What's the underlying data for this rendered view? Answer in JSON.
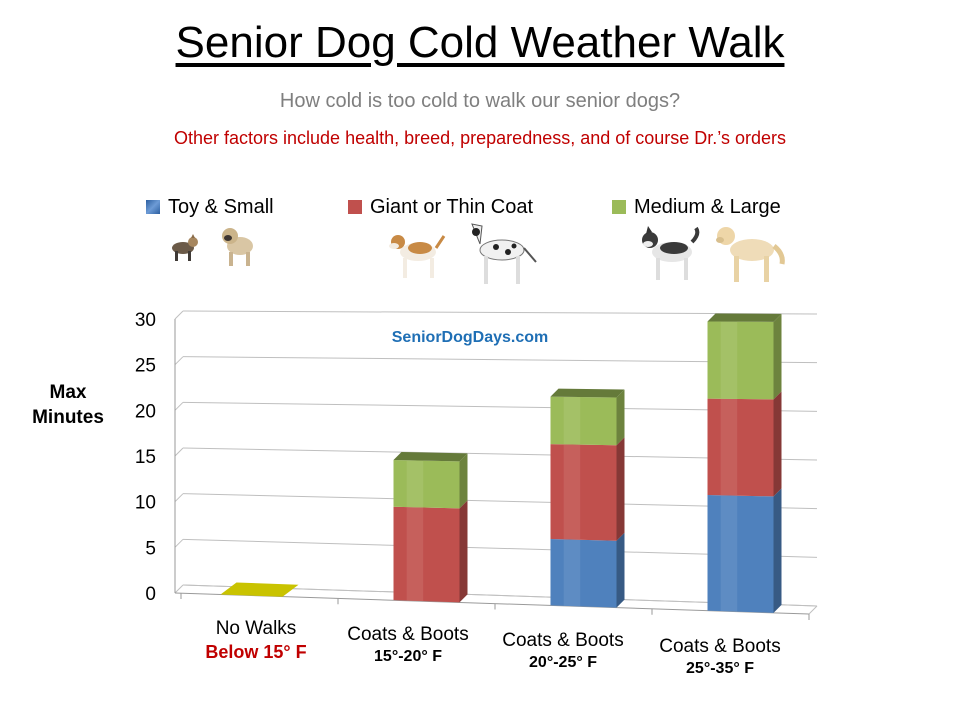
{
  "title": "Senior Dog Cold Weather Walk",
  "subtitle": "How cold is too cold to walk our senior dogs?",
  "note": "Other factors include health, breed, preparedness, and of course Dr.’s orders",
  "watermark": "SeniorDogDays.com",
  "legend": [
    {
      "label": "Toy & Small",
      "color": "#4f81bd"
    },
    {
      "label": "Giant or Thin Coat",
      "color": "#c0504d"
    },
    {
      "label": "Medium & Large",
      "color": "#9bbb59"
    }
  ],
  "dog_icons": [
    "yorkie-icon",
    "pug-icon",
    "beagle-icon",
    "great-dane-icon",
    "husky-icon",
    "golden-retriever-icon"
  ],
  "categories": [
    {
      "line1": "No Walks",
      "line2": "Below 15° F"
    },
    {
      "line1": "Coats & Boots",
      "line2": "15°-20° F"
    },
    {
      "line1": "Coats & Boots",
      "line2": "20°-25° F"
    },
    {
      "line1": "Coats & Boots",
      "line2": "25°-35° F"
    }
  ],
  "chart_data": {
    "type": "bar",
    "stacked": true,
    "three_d": true,
    "title": "Senior Dog Cold Weather Walk",
    "ylabel": "Max Minutes",
    "xlabel": "",
    "ylim": [
      0,
      30
    ],
    "yticks": [
      0,
      5,
      10,
      15,
      20,
      25,
      30
    ],
    "grid": true,
    "legend_position": "top",
    "categories": [
      "No Walks Below 15° F",
      "Coats & Boots 15°-20° F",
      "Coats & Boots 20°-25° F",
      "Coats & Boots 25°-35° F"
    ],
    "series": [
      {
        "name": "Toy & Small",
        "color": "#4f81bd",
        "values": [
          0,
          0,
          7,
          12
        ]
      },
      {
        "name": "Giant or Thin Coat",
        "color": "#c0504d",
        "values": [
          0,
          10,
          10,
          10
        ]
      },
      {
        "name": "Medium & Large",
        "color": "#9bbb59",
        "values": [
          0,
          5,
          5,
          8
        ]
      }
    ],
    "zero_marker_color": "#c9c300"
  }
}
